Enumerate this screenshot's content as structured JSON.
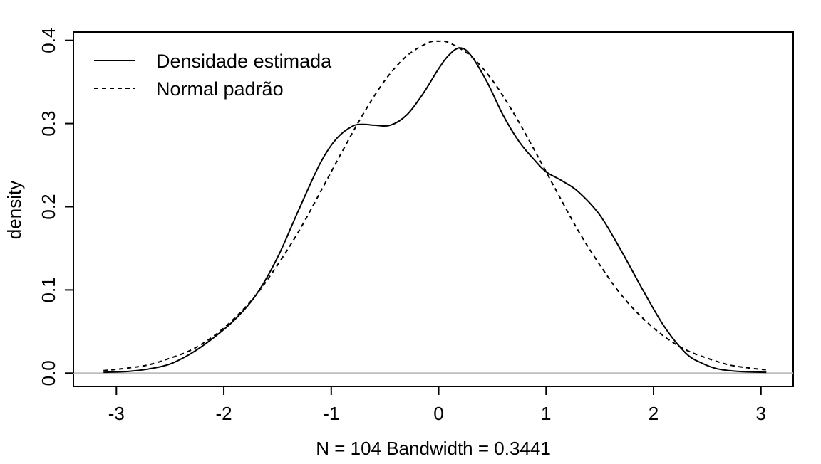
{
  "chart_data": {
    "type": "line",
    "title": "",
    "xlabel": "N = 104   Bandwidth = 0.3441",
    "ylabel": "density",
    "xlim": [
      -3.4,
      3.3
    ],
    "ylim": [
      -0.016,
      0.41
    ],
    "xticks": [
      -3,
      -2,
      -1,
      0,
      1,
      2,
      3
    ],
    "xtick_labels": [
      "-3",
      "-2",
      "-1",
      "0",
      "1",
      "2",
      "3"
    ],
    "yticks": [
      0.0,
      0.1,
      0.2,
      0.3,
      0.4
    ],
    "ytick_labels": [
      "0.0",
      "0.1",
      "0.2",
      "0.3",
      "0.4"
    ],
    "baseline": 0,
    "grid": false,
    "legend": "top-left",
    "colors": {
      "line": "#000000",
      "baseline": "#bebebe",
      "background": "#ffffff"
    },
    "series": [
      {
        "name": "Densidade estimada",
        "style": "solid",
        "x": [
          -3.12,
          -2.9,
          -2.7,
          -2.5,
          -2.3,
          -2.1,
          -1.9,
          -1.7,
          -1.5,
          -1.3,
          -1.1,
          -0.95,
          -0.8,
          -0.7,
          -0.6,
          -0.45,
          -0.3,
          -0.15,
          0.0,
          0.1,
          0.2,
          0.3,
          0.45,
          0.6,
          0.75,
          0.9,
          1.0,
          1.15,
          1.3,
          1.5,
          1.7,
          1.9,
          2.1,
          2.3,
          2.45,
          2.6,
          2.8,
          3.05
        ],
        "values": [
          0.001,
          0.002,
          0.005,
          0.011,
          0.024,
          0.042,
          0.064,
          0.094,
          0.139,
          0.197,
          0.253,
          0.282,
          0.297,
          0.299,
          0.298,
          0.298,
          0.31,
          0.335,
          0.366,
          0.383,
          0.391,
          0.382,
          0.35,
          0.31,
          0.278,
          0.255,
          0.242,
          0.231,
          0.218,
          0.19,
          0.147,
          0.1,
          0.056,
          0.024,
          0.012,
          0.005,
          0.002,
          0.001
        ]
      },
      {
        "name": "Normal padrão",
        "style": "dashed",
        "x": [
          -3.12,
          -2.9,
          -2.7,
          -2.5,
          -2.3,
          -2.1,
          -1.9,
          -1.7,
          -1.5,
          -1.3,
          -1.1,
          -0.9,
          -0.7,
          -0.5,
          -0.3,
          -0.1,
          0.0,
          0.1,
          0.3,
          0.5,
          0.7,
          0.9,
          1.1,
          1.3,
          1.5,
          1.7,
          1.9,
          2.1,
          2.3,
          2.5,
          2.7,
          2.9,
          3.05
        ],
        "values": [
          0.003,
          0.006,
          0.01,
          0.018,
          0.028,
          0.044,
          0.066,
          0.094,
          0.13,
          0.171,
          0.218,
          0.266,
          0.312,
          0.352,
          0.381,
          0.397,
          0.399,
          0.397,
          0.381,
          0.352,
          0.312,
          0.266,
          0.218,
          0.171,
          0.13,
          0.094,
          0.066,
          0.044,
          0.028,
          0.018,
          0.01,
          0.006,
          0.004
        ]
      }
    ]
  }
}
